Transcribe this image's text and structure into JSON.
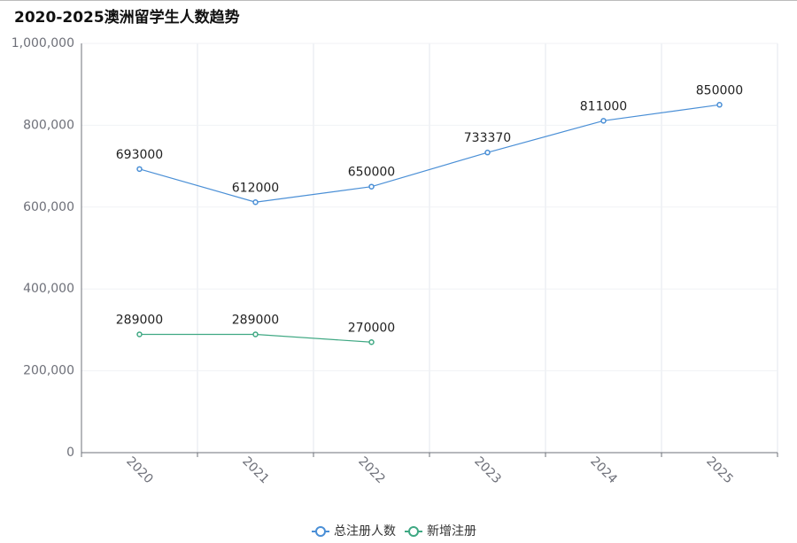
{
  "chart_data": {
    "type": "line",
    "title": "2020-2025澳洲留学生人数趋势",
    "categories": [
      "2020",
      "2021",
      "2022",
      "2023",
      "2024",
      "2025"
    ],
    "series": [
      {
        "name": "总注册人数",
        "color": "#4a8fd6",
        "values": [
          693000,
          612000,
          650000,
          733370,
          811000,
          850000
        ]
      },
      {
        "name": "新增注册",
        "color": "#3fa883",
        "values": [
          289000,
          289000,
          270000,
          null,
          null,
          null
        ]
      }
    ],
    "ylim": [
      0,
      1000000
    ],
    "yticks": [
      0,
      {
        "value": 200000,
        "label": "200,000"
      },
      {
        "value": 400000,
        "label": "400,000"
      },
      {
        "value": 600000,
        "label": "600,000"
      },
      {
        "value": 800000,
        "label": "800,000"
      },
      {
        "value": 1000000,
        "label": "1,000,000"
      }
    ],
    "grid": true,
    "legend": "bottom"
  }
}
